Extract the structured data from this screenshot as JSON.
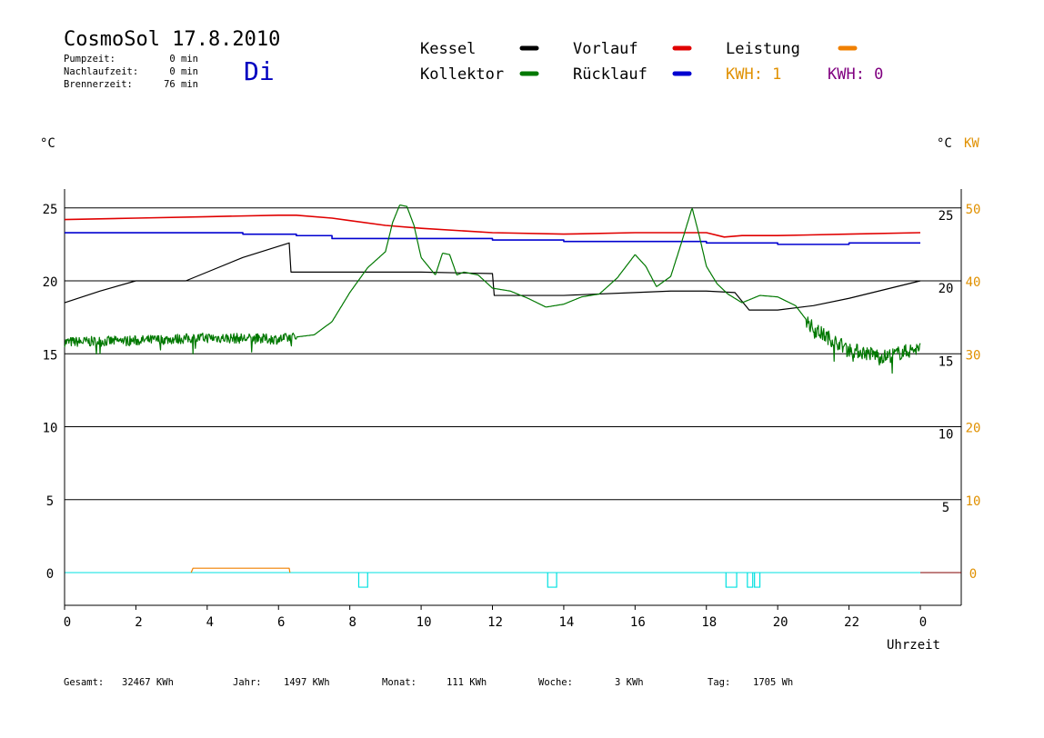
{
  "header": {
    "title": "CosmoSol 17.8.2010",
    "day": "Di",
    "stats": [
      {
        "label": "Pumpzeit:",
        "value": "0 min"
      },
      {
        "label": "Nachlaufzeit:",
        "value": "0 min"
      },
      {
        "label": "Brennerzeit:",
        "value": "76 min"
      }
    ]
  },
  "legend": {
    "kessel": "Kessel",
    "kollektor": "Kollektor",
    "vorlauf": "Vorlauf",
    "ruecklauf": "Rücklauf",
    "leistung": "Leistung",
    "kwh1": "KWH: 1",
    "kwh0": "KWH: 0"
  },
  "footer": [
    {
      "label": "Gesamt:",
      "value": "32467 KWh"
    },
    {
      "label": "Jahr:",
      "value": "1497 KWh"
    },
    {
      "label": "Monat:",
      "value": "111 KWh"
    },
    {
      "label": "Woche:",
      "value": "3 KWh"
    },
    {
      "label": "Tag:",
      "value": "1705 Wh"
    }
  ],
  "colors": {
    "kessel": "#000000",
    "kollektor": "#007800",
    "vorlauf": "#e00000",
    "ruecklauf": "#0000d0",
    "leistung": "#f08000",
    "kwh0": "#800080",
    "pump": "#00e0e0",
    "axis_right": "#e09000",
    "day": "#0000c0"
  },
  "chart_data": {
    "type": "line",
    "xlabel": "Uhrzeit",
    "ylabel_left": "°C",
    "ylabel_right_temp": "°C",
    "ylabel_right_power": "KW",
    "xlim": [
      0,
      24
    ],
    "ylim_left": [
      -2,
      27
    ],
    "x_ticks": [
      "0",
      "2",
      "4",
      "6",
      "8",
      "10",
      "12",
      "14",
      "16",
      "18",
      "20",
      "22",
      "0"
    ],
    "y_ticks_left": [
      "25",
      "20",
      "15",
      "10",
      "5",
      "0"
    ],
    "y_ticks_right_temp": [
      "25",
      "20",
      "15",
      "10",
      "5"
    ],
    "y_ticks_right_power": [
      "50",
      "40",
      "30",
      "20",
      "10",
      "0"
    ],
    "grid": "horizontal",
    "series": [
      {
        "name": "Vorlauf",
        "key": "vorlauf",
        "x": [
          0,
          2,
          4,
          6,
          6.5,
          7.5,
          9,
          10,
          12,
          14,
          16,
          18,
          18.5,
          19,
          20,
          22,
          24
        ],
        "y": [
          24.2,
          24.3,
          24.4,
          24.5,
          24.5,
          24.3,
          23.8,
          23.6,
          23.3,
          23.2,
          23.3,
          23.3,
          23.0,
          23.1,
          23.1,
          23.2,
          23.3
        ]
      },
      {
        "name": "Rücklauf",
        "key": "ruecklauf",
        "x": [
          0,
          3,
          5,
          6.5,
          7.5,
          8,
          10,
          12,
          14,
          16,
          18,
          19,
          20,
          22,
          24
        ],
        "y": [
          23.3,
          23.3,
          23.2,
          23.1,
          22.9,
          22.9,
          22.9,
          22.8,
          22.7,
          22.7,
          22.6,
          22.6,
          22.5,
          22.6,
          22.6
        ],
        "step": true
      },
      {
        "name": "Kessel",
        "key": "kessel",
        "x": [
          0,
          1,
          2,
          3.4,
          4,
          5,
          6.3,
          6.35,
          10,
          12,
          12.05,
          14,
          16,
          17,
          18,
          18.8,
          19.2,
          20,
          21,
          22,
          23,
          24
        ],
        "y": [
          18.5,
          19.3,
          20.0,
          20.0,
          20.6,
          21.6,
          22.6,
          20.6,
          20.6,
          20.5,
          19.0,
          19.0,
          19.2,
          19.3,
          19.3,
          19.2,
          18.0,
          18.0,
          18.3,
          18.8,
          19.4,
          20.0
        ],
        "step": true
      },
      {
        "name": "Kollektor",
        "key": "kollektor",
        "x": [
          0,
          2,
          4,
          6,
          7,
          7.5,
          8,
          8.5,
          9,
          9.2,
          9.4,
          9.6,
          9.8,
          10,
          10.4,
          10.6,
          10.8,
          11,
          11.2,
          11.6,
          12,
          12.5,
          13,
          13.5,
          14,
          14.5,
          15,
          15.5,
          16,
          16.3,
          16.6,
          17,
          17.3,
          17.6,
          17.8,
          18,
          18.3,
          18.6,
          19,
          19.5,
          20,
          20.5,
          21,
          22,
          23,
          24
        ],
        "y": [
          15.8,
          15.9,
          16.1,
          16.0,
          16.3,
          17.2,
          19.2,
          20.9,
          22.0,
          24.0,
          25.2,
          25.1,
          23.8,
          21.6,
          20.4,
          21.9,
          21.8,
          20.4,
          20.6,
          20.4,
          19.5,
          19.3,
          18.8,
          18.2,
          18.4,
          18.9,
          19.1,
          20.2,
          21.8,
          21.0,
          19.6,
          20.3,
          22.6,
          25.0,
          23.1,
          21.0,
          19.8,
          19.1,
          18.5,
          19.0,
          18.9,
          18.3,
          16.7,
          15.3,
          14.8,
          15.4
        ],
        "noise": [
          [
            0,
            6.5,
            0.7
          ],
          [
            20.8,
            24,
            1.0
          ]
        ]
      },
      {
        "name": "Leistung",
        "key": "leistung",
        "x": [
          3.55,
          3.6,
          6.3,
          6.32
        ],
        "y": [
          0,
          0.3,
          0.3,
          0
        ]
      },
      {
        "name": "Pumpe",
        "key": "pump",
        "pulses": [
          [
            8.25,
            8.5
          ],
          [
            13.55,
            13.8
          ],
          [
            18.55,
            18.85
          ],
          [
            19.15,
            19.3
          ],
          [
            19.35,
            19.5
          ]
        ]
      }
    ]
  }
}
